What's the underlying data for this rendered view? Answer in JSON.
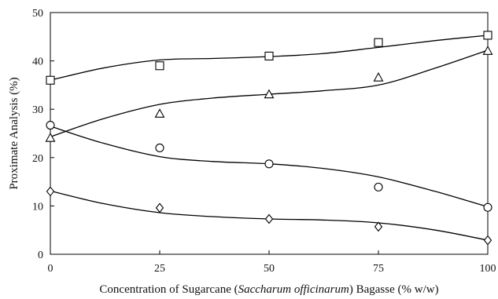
{
  "chart_data": {
    "type": "scatter",
    "title": "",
    "xlabel": {
      "prefix": "Concentration of Sugarcane (",
      "italic": "Saccharum officinarum",
      "suffix": ") Bagasse (% w/w)"
    },
    "ylabel": "Proximate Analysis (%)",
    "xlim": [
      0,
      100
    ],
    "ylim": [
      0,
      50
    ],
    "xticks": [
      0,
      25,
      50,
      75,
      100
    ],
    "yticks": [
      0,
      10,
      20,
      30,
      40,
      50
    ],
    "grid": false,
    "legend": "none",
    "x": [
      0,
      25,
      50,
      75,
      100
    ],
    "series": [
      {
        "marker": "square",
        "values": [
          36,
          39,
          41,
          43.8,
          45.3
        ],
        "trend": [
          [
            0,
            36
          ],
          [
            12,
            38.5
          ],
          [
            25,
            40.2
          ],
          [
            37,
            40.5
          ],
          [
            50,
            40.9
          ],
          [
            62,
            41.5
          ],
          [
            75,
            42.8
          ],
          [
            88,
            44.2
          ],
          [
            100,
            45.3
          ]
        ]
      },
      {
        "marker": "triangle",
        "values": [
          24,
          29,
          33,
          36.5,
          42
        ],
        "trend": [
          [
            0,
            24.3
          ],
          [
            12,
            28
          ],
          [
            25,
            31
          ],
          [
            37,
            32.3
          ],
          [
            50,
            33.1
          ],
          [
            62,
            33.8
          ],
          [
            75,
            35
          ],
          [
            88,
            38.5
          ],
          [
            100,
            42.2
          ]
        ]
      },
      {
        "marker": "circle",
        "values": [
          26.7,
          22,
          18.7,
          13.9,
          9.7
        ],
        "trend": [
          [
            0,
            26.5
          ],
          [
            12,
            23
          ],
          [
            25,
            20.2
          ],
          [
            37,
            19.2
          ],
          [
            50,
            18.7
          ],
          [
            62,
            17.8
          ],
          [
            75,
            16
          ],
          [
            88,
            13
          ],
          [
            100,
            9.8
          ]
        ]
      },
      {
        "marker": "diamond",
        "values": [
          13,
          9.6,
          7.3,
          5.7,
          2.9
        ],
        "trend": [
          [
            0,
            13.1
          ],
          [
            12,
            10.5
          ],
          [
            25,
            8.6
          ],
          [
            37,
            7.8
          ],
          [
            50,
            7.3
          ],
          [
            62,
            7.1
          ],
          [
            75,
            6.5
          ],
          [
            88,
            5
          ],
          [
            100,
            2.9
          ]
        ]
      }
    ]
  }
}
